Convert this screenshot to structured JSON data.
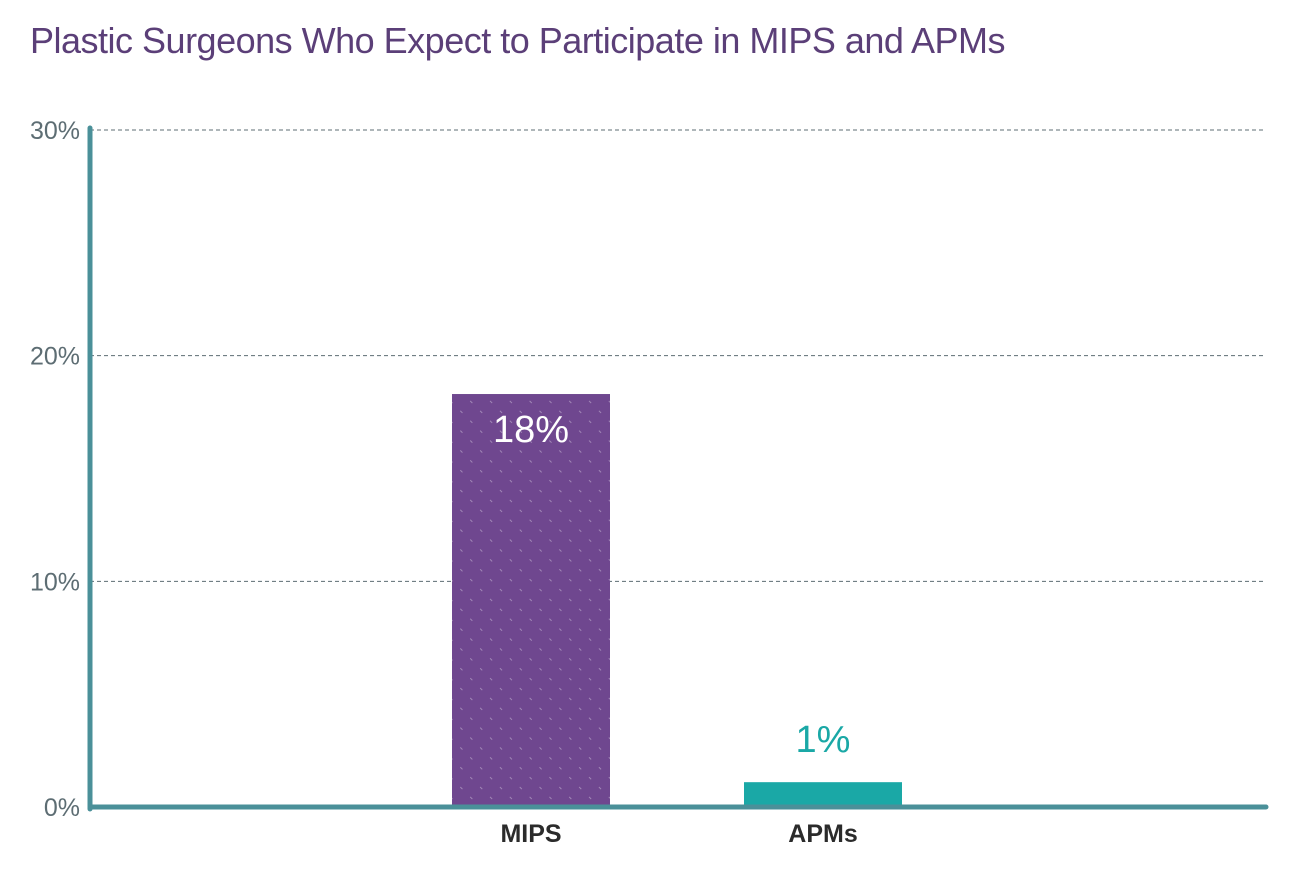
{
  "chart_data": {
    "type": "bar",
    "title": "Plastic Surgeons Who Expect to Participate in MIPS and APMs",
    "categories": [
      "MIPS",
      "APMs"
    ],
    "values": [
      18.3,
      1.1
    ],
    "data_labels": [
      "18%",
      "1%"
    ],
    "ylim": [
      0,
      30
    ],
    "yticks": [
      0,
      10,
      20,
      30
    ],
    "ytick_labels": [
      "0%",
      "10%",
      "20%",
      "30%"
    ],
    "xlabel": "",
    "ylabel": "",
    "grid": true,
    "colors": {
      "bars": [
        "#6f478f",
        "#1aa8a6"
      ],
      "data_label_colors": [
        "#ffffff",
        "#1aa8a6"
      ],
      "axis": "#4a9099",
      "grid": "#5d6d73",
      "title": "#5b3f78"
    }
  }
}
